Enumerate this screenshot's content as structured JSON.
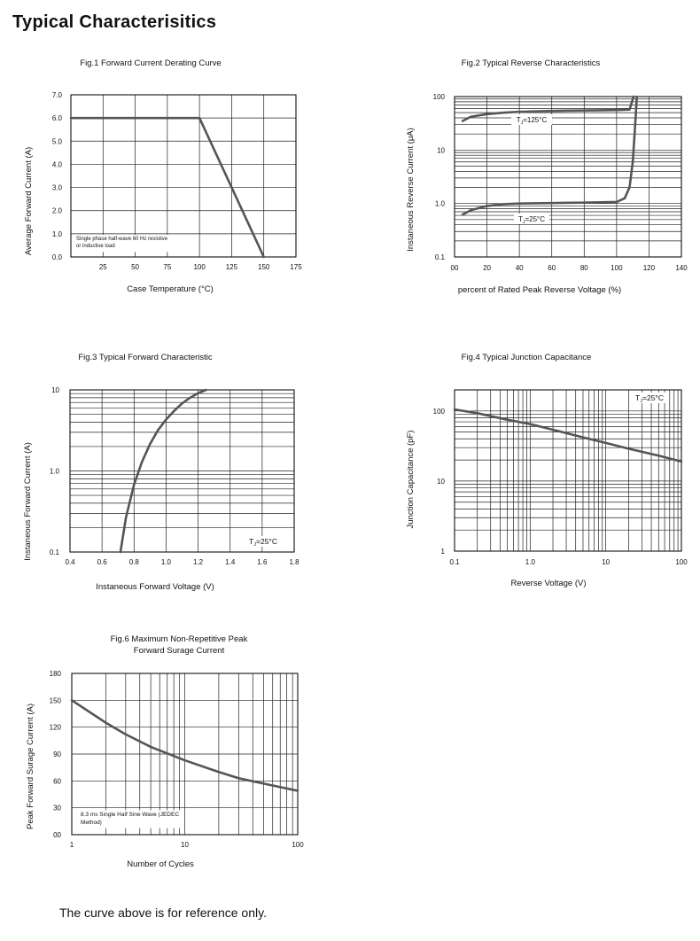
{
  "page": {
    "title": "Typical  Characterisitics",
    "footer": "The curve above is for reference only."
  },
  "chart_data": [
    {
      "id": "fig1",
      "type": "line",
      "title": "Fig.1  Forward Current Derating Curve",
      "xlabel": "Case Temperature (°C)",
      "ylabel": "Average Forward Current (A)",
      "xscale": "linear",
      "yscale": "linear",
      "xlim": [
        0,
        175
      ],
      "ylim": [
        0,
        7
      ],
      "xticks": [
        25,
        50,
        75,
        100,
        125,
        150,
        175
      ],
      "xtick_labels": [
        "25",
        "50",
        "75",
        "100",
        "125",
        "150",
        "175"
      ],
      "yticks": [
        0,
        1,
        2,
        3,
        4,
        5,
        6,
        7
      ],
      "ytick_labels": [
        "0.0",
        "1.0",
        "2.0",
        "3.0",
        "4.0",
        "5.0",
        "6.0",
        "7.0"
      ],
      "grid": true,
      "annotations": [
        "Single phase half-wave 60 Hz resistive",
        "or inductive load"
      ],
      "series": [
        {
          "x": [
            0,
            100,
            150
          ],
          "y": [
            6,
            6,
            0
          ]
        }
      ]
    },
    {
      "id": "fig2",
      "type": "line",
      "title": "Fig.2  Typical Reverse Characteristics",
      "xlabel": "percent of Rated  Peak Reverse Voltage (%)",
      "ylabel": "Instaneous Reverse Current  (μA)",
      "xscale": "linear",
      "yscale": "log",
      "xlim": [
        0,
        140
      ],
      "ylim": [
        0.1,
        100
      ],
      "xticks": [
        0,
        20,
        40,
        60,
        80,
        100,
        120,
        140
      ],
      "xtick_labels": [
        "00",
        "20",
        "40",
        "60",
        "80",
        "100",
        "120",
        "140"
      ],
      "yticks": [
        0.1,
        1,
        10,
        100
      ],
      "ytick_labels": [
        "0.1",
        "1.0",
        "10",
        "100"
      ],
      "grid": true,
      "series": [
        {
          "label": "TJ=125°C",
          "x": [
            5,
            10,
            20,
            30,
            40,
            60,
            80,
            100,
            108,
            110.5
          ],
          "y": [
            35,
            42,
            47,
            50,
            52,
            54,
            55,
            56,
            57,
            100
          ]
        },
        {
          "label": "TJ=25°C",
          "x": [
            5,
            10,
            20,
            30,
            40,
            60,
            80,
            100,
            105,
            108,
            110,
            111.5,
            112.5
          ],
          "y": [
            0.62,
            0.75,
            0.9,
            0.97,
            1.0,
            1.02,
            1.04,
            1.07,
            1.25,
            2,
            6,
            30,
            100
          ]
        }
      ]
    },
    {
      "id": "fig3",
      "type": "line",
      "title": "Fig.3  Typical Forward Characteristic",
      "xlabel": "Instaneous Forward Voltage (V)",
      "ylabel": "Instaneous Forward Current (A)",
      "xscale": "linear",
      "yscale": "log",
      "xlim": [
        0.4,
        1.8
      ],
      "ylim": [
        0.1,
        10
      ],
      "xticks": [
        0.4,
        0.6,
        0.8,
        1.0,
        1.2,
        1.4,
        1.6,
        1.8
      ],
      "xtick_labels": [
        "0.4",
        "0.6",
        "0.8",
        "1.0",
        "1.2",
        "1.4",
        "1.6",
        "1.8"
      ],
      "yticks": [
        0.1,
        1,
        10
      ],
      "ytick_labels": [
        "0.1",
        "1.0",
        "10"
      ],
      "grid": true,
      "annotations": [
        "TJ=25°C"
      ],
      "series": [
        {
          "x": [
            0.715,
            0.75,
            0.8,
            0.85,
            0.9,
            0.95,
            1.0,
            1.05,
            1.1,
            1.15,
            1.2,
            1.25
          ],
          "y": [
            0.1,
            0.27,
            0.68,
            1.3,
            2.15,
            3.2,
            4.3,
            5.5,
            6.8,
            8.0,
            9.1,
            10
          ]
        }
      ]
    },
    {
      "id": "fig4",
      "type": "line",
      "title": "Fig.4  Typical Junction Capacitance",
      "xlabel": "Reverse  Voltage (V)",
      "ylabel": "Junction Capacitance (pF)",
      "xscale": "log",
      "yscale": "log",
      "xlim": [
        0.1,
        100
      ],
      "ylim": [
        1,
        200
      ],
      "xticks": [
        0.1,
        1,
        10,
        100
      ],
      "xtick_labels": [
        "0.1",
        "1.0",
        "10",
        "100"
      ],
      "yticks": [
        1,
        10,
        100
      ],
      "ytick_labels": [
        "1",
        "10",
        "100"
      ],
      "grid": true,
      "annotations": [
        "TJ=25°C"
      ],
      "series": [
        {
          "x": [
            0.1,
            0.2,
            0.5,
            1,
            2,
            5,
            10,
            20,
            50,
            100
          ],
          "y": [
            105,
            93,
            75,
            65,
            54,
            42,
            35,
            29,
            23,
            19
          ]
        }
      ]
    },
    {
      "id": "fig6",
      "type": "line",
      "title": "Fig.6  Maximum Non-Repetitive Peak",
      "subtitle": "Forward Surage Current",
      "xlabel": "Number of Cycles",
      "ylabel": "Peak Forward Surage Current (A)",
      "xscale": "log",
      "yscale": "linear",
      "xlim": [
        1,
        100
      ],
      "ylim": [
        0,
        180
      ],
      "xticks": [
        1,
        10,
        100
      ],
      "xtick_labels": [
        "1",
        "10",
        "100"
      ],
      "yticks": [
        0,
        30,
        60,
        90,
        120,
        150,
        180
      ],
      "ytick_labels": [
        "00",
        "30",
        "60",
        "90",
        "120",
        "150",
        "180"
      ],
      "grid": true,
      "annotations": [
        "8.3 ms Single Half Sine Wave (JEDEC",
        "Method)"
      ],
      "series": [
        {
          "x": [
            1,
            2,
            3,
            5,
            10,
            20,
            30,
            50,
            100
          ],
          "y": [
            150,
            125,
            112,
            98,
            83,
            70,
            63,
            57,
            49
          ]
        }
      ]
    }
  ]
}
